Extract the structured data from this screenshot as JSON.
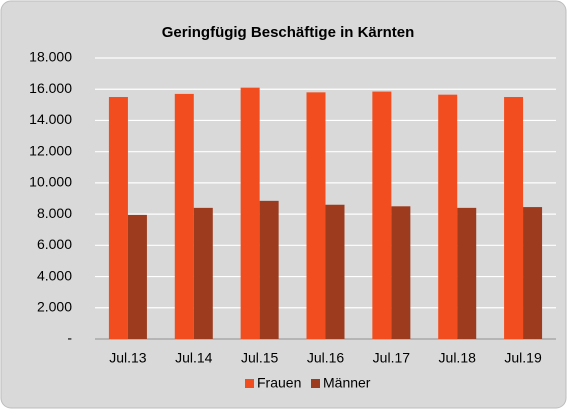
{
  "chart_data": {
    "type": "bar",
    "title": "Geringfügig Beschäftige in Kärnten",
    "categories": [
      "Jul.13",
      "Jul.14",
      "Jul.15",
      "Jul.16",
      "Jul.17",
      "Jul.18",
      "Jul.19"
    ],
    "series": [
      {
        "name": "Frauen",
        "color": "#f24d1f",
        "values": [
          15500,
          15700,
          16100,
          15800,
          15850,
          15650,
          15500
        ]
      },
      {
        "name": "Männer",
        "color": "#9c3b1d",
        "values": [
          7950,
          8400,
          8850,
          8600,
          8500,
          8400,
          8450
        ]
      }
    ],
    "ylim": [
      0,
      18000
    ],
    "yticks": [
      {
        "value": 0,
        "label": "-"
      },
      {
        "value": 2000,
        "label": "2.000"
      },
      {
        "value": 4000,
        "label": "4.000"
      },
      {
        "value": 6000,
        "label": "6.000"
      },
      {
        "value": 8000,
        "label": "8.000"
      },
      {
        "value": 10000,
        "label": "10.000"
      },
      {
        "value": 12000,
        "label": "12.000"
      },
      {
        "value": 14000,
        "label": "14.000"
      },
      {
        "value": 16000,
        "label": "16.000"
      },
      {
        "value": 18000,
        "label": "18.000"
      }
    ],
    "grid": true,
    "legend": "bottom"
  }
}
